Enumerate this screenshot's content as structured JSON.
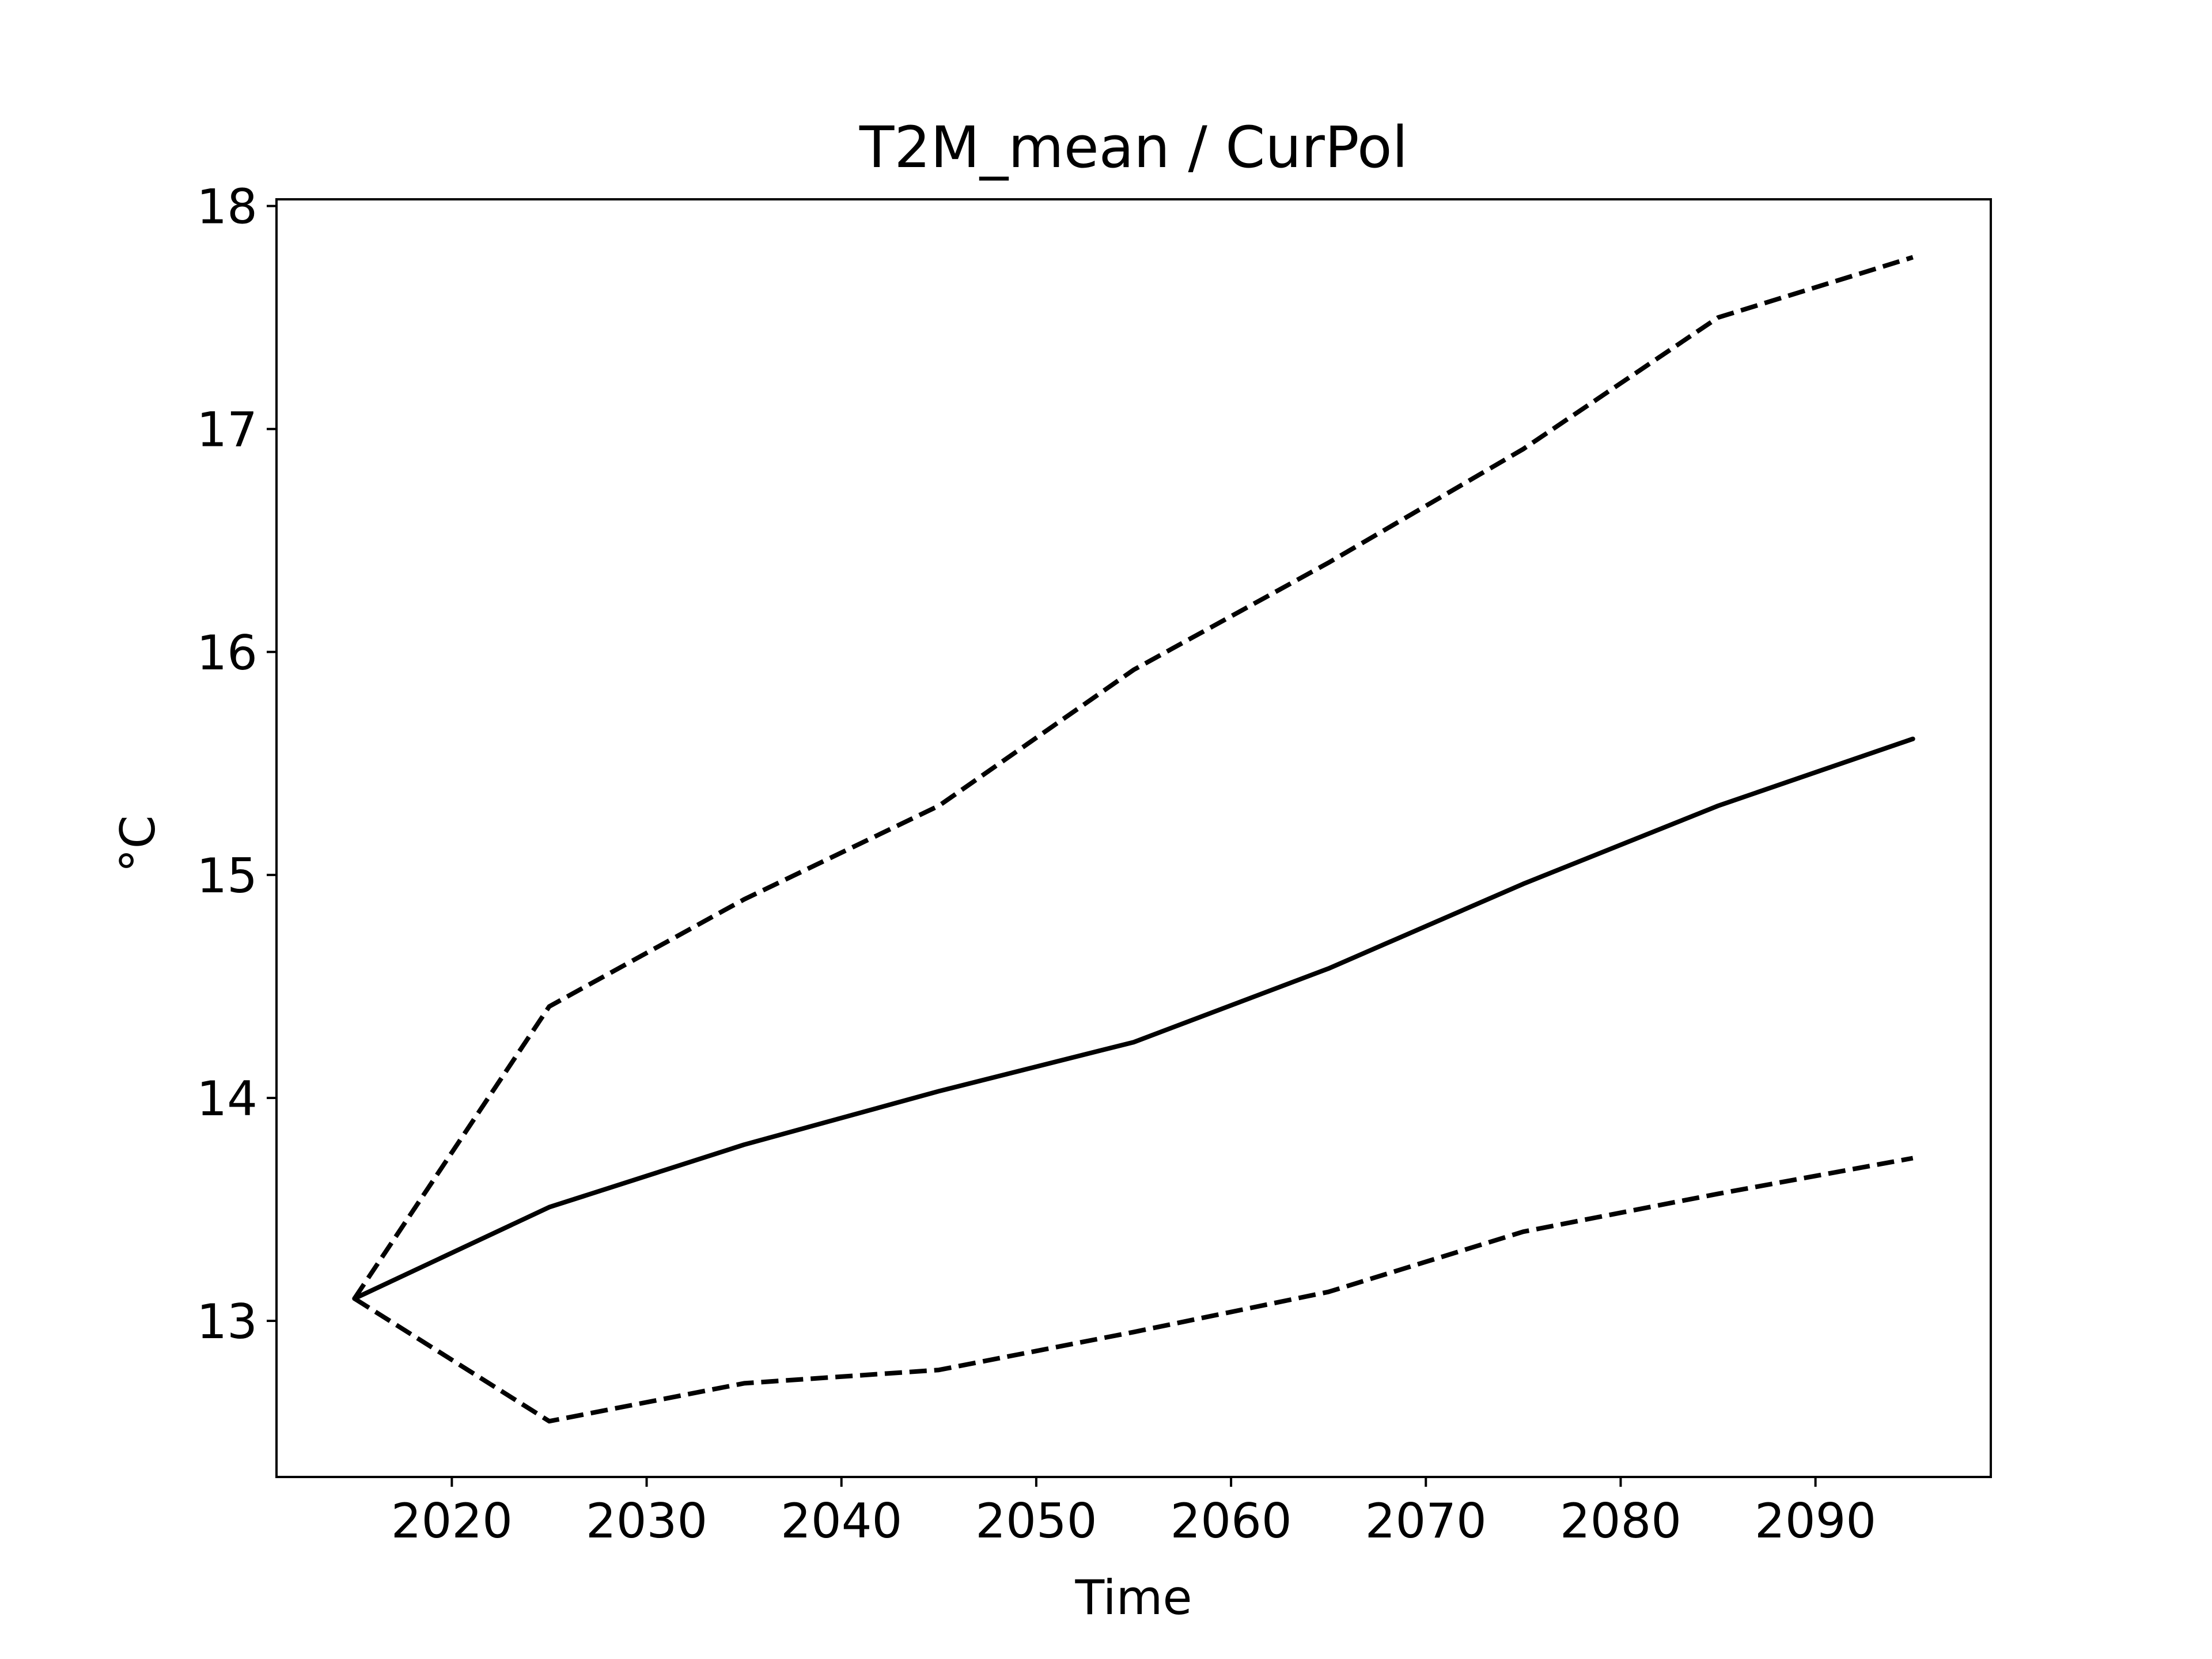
{
  "chart_data": {
    "type": "line",
    "title": "T2M_mean / CurPol",
    "xlabel": "Time",
    "ylabel": "°C",
    "xlim": [
      2011,
      2099
    ],
    "ylim": [
      12.3,
      18.03
    ],
    "xticks": [
      2020,
      2030,
      2040,
      2050,
      2060,
      2070,
      2080,
      2090
    ],
    "yticks": [
      13,
      14,
      15,
      16,
      17,
      18
    ],
    "grid": false,
    "legend": "none",
    "series": [
      {
        "style": "solid",
        "color": "#000000",
        "x": [
          2015,
          2025,
          2035,
          2045,
          2055,
          2065,
          2075,
          2085,
          2095
        ],
        "y": [
          13.1,
          13.51,
          13.79,
          14.03,
          14.25,
          14.58,
          14.96,
          15.31,
          15.61
        ]
      },
      {
        "style": "dashed",
        "color": "#000000",
        "x": [
          2015,
          2025,
          2035,
          2045,
          2055,
          2065,
          2075,
          2085,
          2095
        ],
        "y": [
          13.1,
          14.41,
          14.89,
          15.31,
          15.92,
          16.4,
          16.91,
          17.5,
          17.77
        ]
      },
      {
        "style": "dashed",
        "color": "#000000",
        "x": [
          2015,
          2025,
          2035,
          2045,
          2055,
          2065,
          2075,
          2085,
          2095
        ],
        "y": [
          13.1,
          12.55,
          12.72,
          12.78,
          12.95,
          13.13,
          13.4,
          13.57,
          13.73
        ]
      }
    ]
  }
}
